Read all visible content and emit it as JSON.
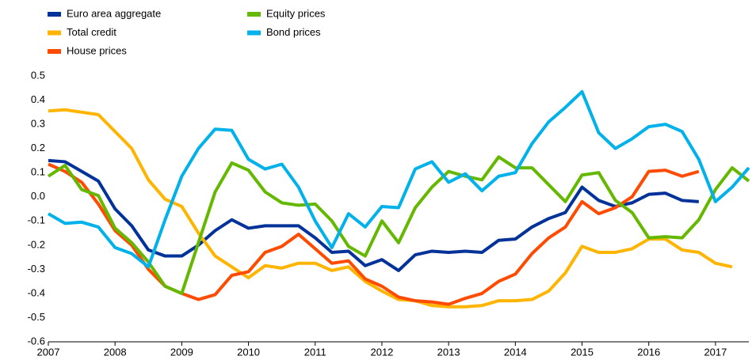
{
  "chart_data": {
    "type": "line",
    "x": [
      2007,
      2007.25,
      2007.5,
      2007.75,
      2008,
      2008.25,
      2008.5,
      2008.75,
      2009,
      2009.25,
      2009.5,
      2009.75,
      2010,
      2010.25,
      2010.5,
      2010.75,
      2011,
      2011.25,
      2011.5,
      2011.75,
      2012,
      2012.25,
      2012.5,
      2012.75,
      2013,
      2013.25,
      2013.5,
      2013.75,
      2014,
      2014.25,
      2014.5,
      2014.75,
      2015,
      2015.25,
      2015.5,
      2015.75,
      2016,
      2016.25,
      2016.5,
      2016.75,
      2017,
      2017.25,
      2017.5
    ],
    "series": [
      {
        "name": "Euro area aggregate",
        "color": "#003299",
        "values": [
          0.15,
          0.145,
          0.105,
          0.065,
          -0.05,
          -0.12,
          -0.22,
          -0.245,
          -0.245,
          -0.2,
          -0.14,
          -0.095,
          -0.13,
          -0.12,
          -0.12,
          -0.12,
          -0.17,
          -0.23,
          -0.225,
          -0.285,
          -0.26,
          -0.305,
          -0.24,
          -0.225,
          -0.23,
          -0.225,
          -0.23,
          -0.18,
          -0.175,
          -0.125,
          -0.09,
          -0.065,
          0.04,
          -0.015,
          -0.04,
          -0.025,
          0.01,
          0.015,
          -0.015,
          -0.02,
          null,
          null,
          null
        ]
      },
      {
        "name": "Total credit",
        "color": "#ffb400",
        "values": [
          0.355,
          0.36,
          0.35,
          0.34,
          0.27,
          0.2,
          0.07,
          -0.01,
          -0.04,
          -0.15,
          -0.245,
          -0.29,
          -0.335,
          -0.285,
          -0.295,
          -0.275,
          -0.275,
          -0.305,
          -0.29,
          -0.35,
          -0.39,
          -0.425,
          -0.43,
          -0.45,
          -0.455,
          -0.455,
          -0.45,
          -0.43,
          -0.43,
          -0.425,
          -0.39,
          -0.315,
          -0.205,
          -0.23,
          -0.23,
          -0.215,
          -0.175,
          -0.175,
          -0.22,
          -0.23,
          -0.275,
          -0.29,
          null
        ]
      },
      {
        "name": "House prices",
        "color": "#ff4b00",
        "values": [
          0.135,
          0.105,
          0.06,
          -0.03,
          -0.14,
          -0.2,
          -0.3,
          -0.37,
          -0.4,
          -0.425,
          -0.405,
          -0.325,
          -0.31,
          -0.23,
          -0.205,
          -0.155,
          -0.215,
          -0.275,
          -0.265,
          -0.34,
          -0.37,
          -0.415,
          -0.43,
          -0.435,
          -0.445,
          -0.42,
          -0.4,
          -0.35,
          -0.32,
          -0.235,
          -0.17,
          -0.125,
          -0.02,
          -0.07,
          -0.045,
          0.0,
          0.105,
          0.11,
          0.085,
          0.105,
          null,
          null,
          null
        ]
      },
      {
        "name": "Equity prices",
        "color": "#65b800",
        "values": [
          0.085,
          0.13,
          0.03,
          0.005,
          -0.13,
          -0.19,
          -0.27,
          -0.37,
          -0.4,
          -0.19,
          0.02,
          0.14,
          0.11,
          0.02,
          -0.025,
          -0.035,
          -0.03,
          -0.1,
          -0.205,
          -0.245,
          -0.1,
          -0.19,
          -0.045,
          0.04,
          0.105,
          0.085,
          0.07,
          0.165,
          0.12,
          0.12,
          0.05,
          -0.02,
          0.09,
          0.1,
          -0.015,
          -0.065,
          -0.17,
          -0.165,
          -0.17,
          -0.095,
          0.03,
          0.12,
          0.065
        ]
      },
      {
        "name": "Bond prices",
        "color": "#00b1ea",
        "values": [
          -0.07,
          -0.11,
          -0.105,
          -0.125,
          -0.21,
          -0.235,
          -0.29,
          -0.095,
          0.085,
          0.2,
          0.28,
          0.275,
          0.155,
          0.115,
          0.135,
          0.04,
          -0.1,
          -0.21,
          -0.07,
          -0.125,
          -0.04,
          -0.045,
          0.115,
          0.145,
          0.06,
          0.095,
          0.025,
          0.085,
          0.1,
          0.22,
          0.31,
          0.37,
          0.435,
          0.265,
          0.2,
          0.24,
          0.29,
          0.3,
          0.27,
          0.155,
          -0.02,
          0.04,
          0.12
        ]
      }
    ],
    "xlim": [
      2007,
      2017.5
    ],
    "xticks": [
      2007,
      2008,
      2009,
      2010,
      2011,
      2012,
      2013,
      2014,
      2015,
      2016,
      2017
    ],
    "ylim": [
      -0.6,
      0.5
    ],
    "yticks": [
      -0.6,
      -0.5,
      -0.4,
      -0.3,
      -0.2,
      -0.1,
      {
        "value": 0,
        "label": "0.0"
      },
      0.1,
      0.2,
      0.3,
      0.4,
      0.5
    ],
    "grid": false
  }
}
